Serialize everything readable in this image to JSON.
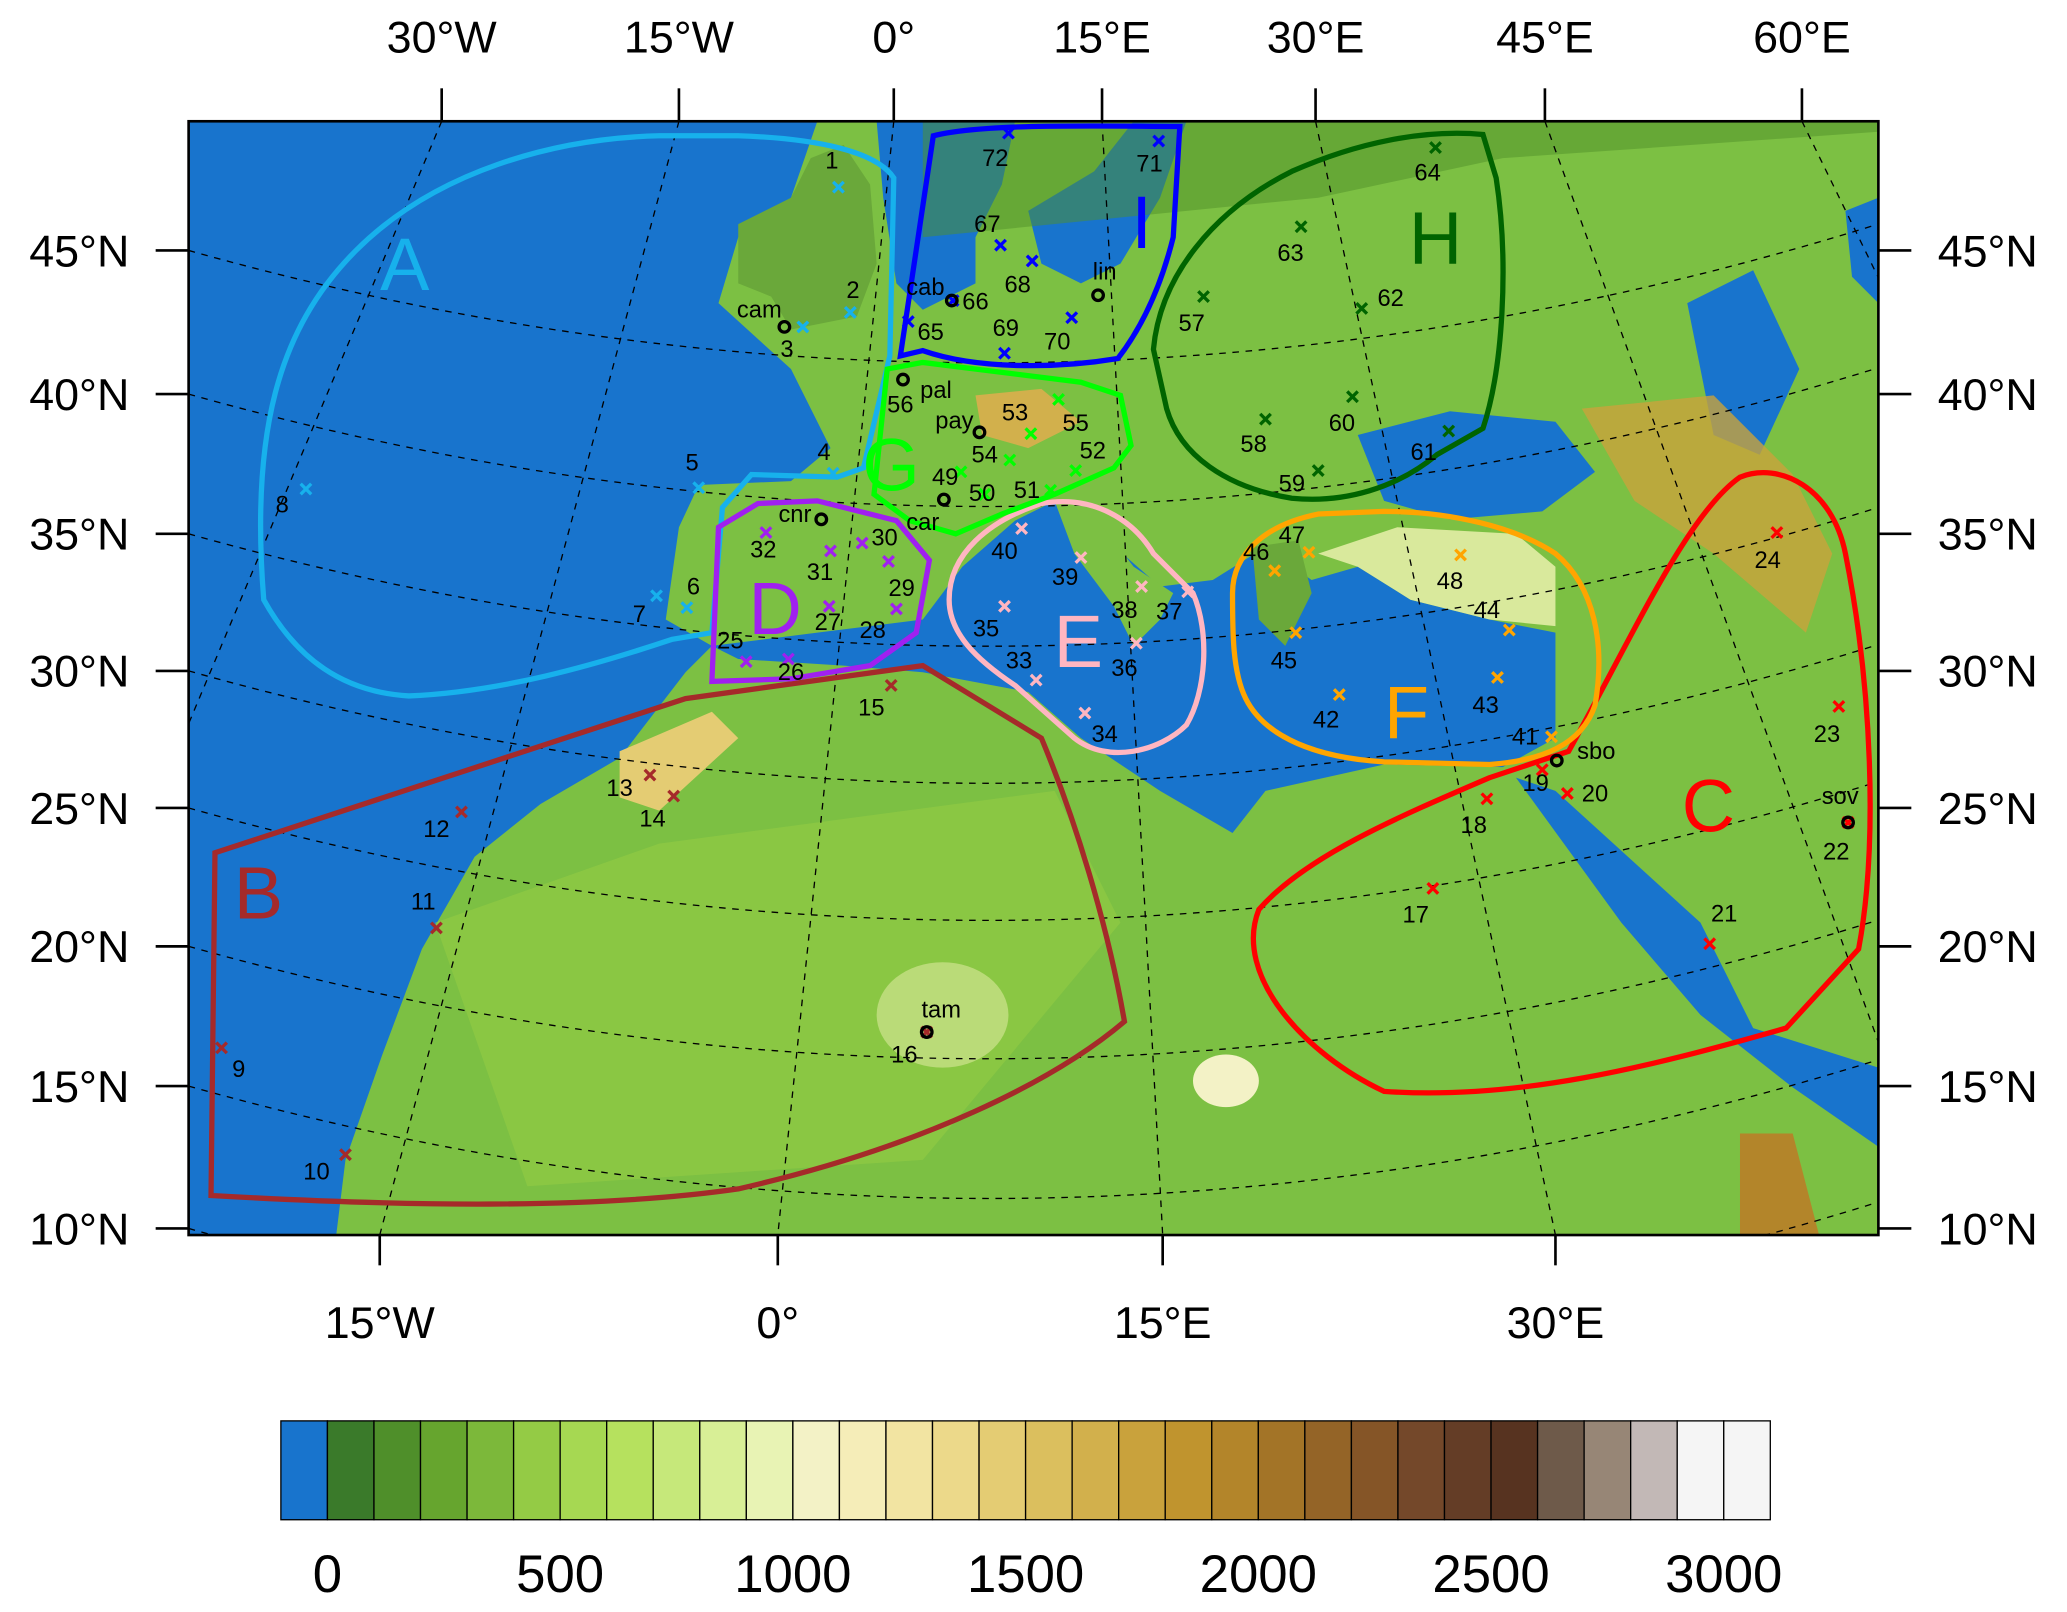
{
  "axes": {
    "top": [
      "30°W",
      "15°W",
      "0°",
      "15°E",
      "30°E",
      "45°E",
      "60°E"
    ],
    "bottom": [
      "15°W",
      "0°",
      "15°E",
      "30°E"
    ],
    "left": [
      "45°N",
      "40°N",
      "35°N",
      "30°N",
      "25°N",
      "20°N",
      "15°N",
      "10°N"
    ],
    "right": [
      "45°N",
      "40°N",
      "35°N",
      "30°N",
      "25°N",
      "20°N",
      "15°N",
      "10°N"
    ]
  },
  "colorbar": {
    "ticks": [
      "0",
      "500",
      "1000",
      "1500",
      "2000",
      "2500",
      "3000"
    ],
    "colors": [
      "#1874cd",
      "#3a7a2a",
      "#4f8f2a",
      "#66a52e",
      "#7cb83a",
      "#94cb45",
      "#a6d852",
      "#b6e15e",
      "#c6e87a",
      "#d8ef96",
      "#e8f3b4",
      "#f3f2c6",
      "#f5edb8",
      "#f2e4a2",
      "#ecd98a",
      "#e4cc73",
      "#dbbf5e",
      "#d2b04c",
      "#c9a23c",
      "#c0942e",
      "#b3852a",
      "#a37427",
      "#946427",
      "#855527",
      "#74482a",
      "#643d26",
      "#573320",
      "#6e5a4a",
      "#978676",
      "#c2b8b6",
      "#f5f5f5",
      "#f5f5f5"
    ]
  },
  "regions": [
    {
      "letter": "A",
      "color": "#17b1ec"
    },
    {
      "letter": "B",
      "color": "#a52a2a"
    },
    {
      "letter": "C",
      "color": "#ff0000"
    },
    {
      "letter": "D",
      "color": "#a020f0"
    },
    {
      "letter": "E",
      "color": "#ffb6c1"
    },
    {
      "letter": "F",
      "color": "#ffa500"
    },
    {
      "letter": "G",
      "color": "#00ff00"
    },
    {
      "letter": "H",
      "color": "#006400"
    },
    {
      "letter": "I",
      "color": "#0000ff"
    }
  ],
  "stations": [
    {
      "id": "1",
      "region": "A"
    },
    {
      "id": "2",
      "region": "A"
    },
    {
      "id": "3",
      "region": "A"
    },
    {
      "id": "4",
      "region": "A"
    },
    {
      "id": "5",
      "region": "A"
    },
    {
      "id": "6",
      "region": "A"
    },
    {
      "id": "7",
      "region": "A"
    },
    {
      "id": "8",
      "region": "A"
    },
    {
      "id": "9",
      "region": "B"
    },
    {
      "id": "10",
      "region": "B"
    },
    {
      "id": "11",
      "region": "B"
    },
    {
      "id": "12",
      "region": "B"
    },
    {
      "id": "13",
      "region": "B"
    },
    {
      "id": "14",
      "region": "B"
    },
    {
      "id": "15",
      "region": "B"
    },
    {
      "id": "16",
      "region": "B"
    },
    {
      "id": "17",
      "region": "C"
    },
    {
      "id": "18",
      "region": "C"
    },
    {
      "id": "19",
      "region": "C"
    },
    {
      "id": "20",
      "region": "C"
    },
    {
      "id": "21",
      "region": "C"
    },
    {
      "id": "22",
      "region": "C"
    },
    {
      "id": "23",
      "region": "C"
    },
    {
      "id": "24",
      "region": "C"
    },
    {
      "id": "25",
      "region": "D"
    },
    {
      "id": "26",
      "region": "D"
    },
    {
      "id": "27",
      "region": "D"
    },
    {
      "id": "28",
      "region": "D"
    },
    {
      "id": "29",
      "region": "D"
    },
    {
      "id": "30",
      "region": "D"
    },
    {
      "id": "31",
      "region": "D"
    },
    {
      "id": "32",
      "region": "D"
    },
    {
      "id": "33",
      "region": "E"
    },
    {
      "id": "34",
      "region": "E"
    },
    {
      "id": "35",
      "region": "E"
    },
    {
      "id": "36",
      "region": "E"
    },
    {
      "id": "37",
      "region": "E"
    },
    {
      "id": "38",
      "region": "E"
    },
    {
      "id": "39",
      "region": "E"
    },
    {
      "id": "40",
      "region": "E"
    },
    {
      "id": "41",
      "region": "F"
    },
    {
      "id": "42",
      "region": "F"
    },
    {
      "id": "43",
      "region": "F"
    },
    {
      "id": "44",
      "region": "F"
    },
    {
      "id": "45",
      "region": "F"
    },
    {
      "id": "46",
      "region": "F"
    },
    {
      "id": "47",
      "region": "F"
    },
    {
      "id": "48",
      "region": "F"
    },
    {
      "id": "49",
      "region": "G"
    },
    {
      "id": "50",
      "region": "G"
    },
    {
      "id": "51",
      "region": "G"
    },
    {
      "id": "52",
      "region": "G"
    },
    {
      "id": "53",
      "region": "G"
    },
    {
      "id": "54",
      "region": "G"
    },
    {
      "id": "55",
      "region": "G"
    },
    {
      "id": "56",
      "region": "G"
    },
    {
      "id": "57",
      "region": "H"
    },
    {
      "id": "58",
      "region": "H"
    },
    {
      "id": "59",
      "region": "H"
    },
    {
      "id": "60",
      "region": "H"
    },
    {
      "id": "61",
      "region": "H"
    },
    {
      "id": "62",
      "region": "H"
    },
    {
      "id": "63",
      "region": "H"
    },
    {
      "id": "64",
      "region": "H"
    },
    {
      "id": "65",
      "region": "I"
    },
    {
      "id": "66",
      "region": "I"
    },
    {
      "id": "67",
      "region": "I"
    },
    {
      "id": "68",
      "region": "I"
    },
    {
      "id": "69",
      "region": "I"
    },
    {
      "id": "70",
      "region": "I"
    },
    {
      "id": "71",
      "region": "I"
    },
    {
      "id": "72",
      "region": "I"
    }
  ],
  "sites": [
    "cam",
    "cab",
    "lin",
    "pal",
    "pay",
    "car",
    "cnr",
    "tam",
    "sbo",
    "sov"
  ]
}
